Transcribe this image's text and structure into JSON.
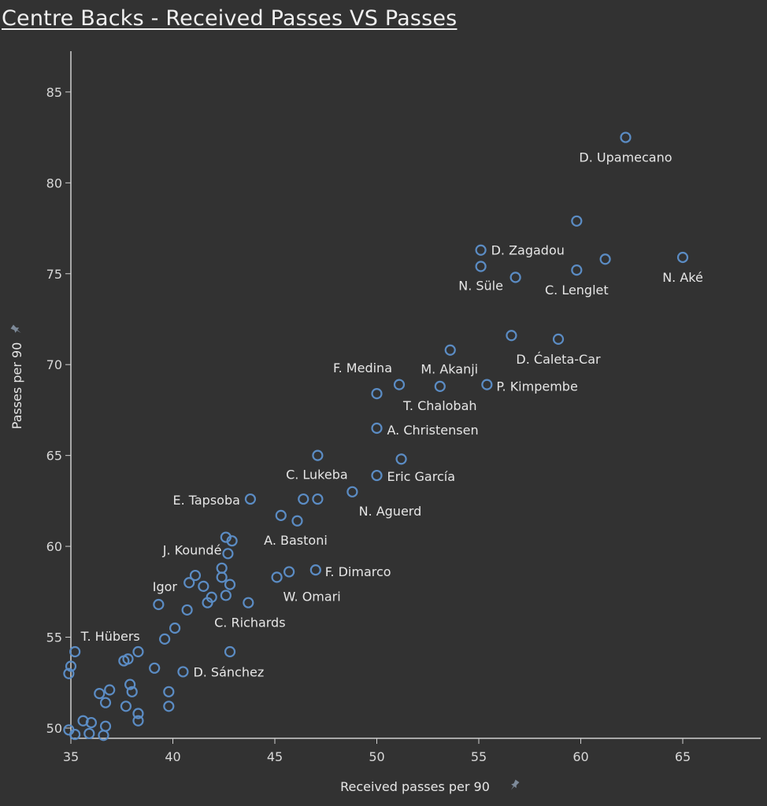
{
  "chart_data": {
    "type": "scatter",
    "title": "Centre Backs - Received Passes VS Passes",
    "xlabel": "Received passes per 90",
    "ylabel": "Passes per 90",
    "xlim": [
      34.7,
      69
    ],
    "ylim": [
      49.45,
      87.25
    ],
    "xticks": [
      35,
      40,
      45,
      50,
      55,
      60,
      65
    ],
    "yticks": [
      50,
      55,
      60,
      65,
      70,
      75,
      80,
      85
    ],
    "grid": false,
    "marker": "hollow-circle",
    "colors": {
      "background": "#323232",
      "point": "#5b8cc4",
      "text": "#e6e6e6",
      "axis": "#d0d0d0"
    },
    "axis_icon": "pin-icon",
    "points": [
      [
        62.2,
        82.5,
        "D. Upamecano"
      ],
      [
        59.8,
        77.9,
        ""
      ],
      [
        55.1,
        76.3,
        "D. Zagadou"
      ],
      [
        55.1,
        75.4,
        "N. Süle"
      ],
      [
        56.8,
        74.8,
        ""
      ],
      [
        61.2,
        75.8,
        ""
      ],
      [
        59.8,
        75.2,
        "C. Lenglet"
      ],
      [
        65.0,
        75.9,
        "N. Aké"
      ],
      [
        53.6,
        70.8,
        "M. Akanji"
      ],
      [
        56.6,
        71.6,
        ""
      ],
      [
        58.9,
        71.4,
        "D. Ćaleta-Car"
      ],
      [
        51.1,
        68.9,
        ""
      ],
      [
        53.1,
        68.8,
        "T. Chalobah"
      ],
      [
        55.4,
        68.9,
        "P. Kimpembe"
      ],
      [
        50.0,
        68.4,
        "F. Medina"
      ],
      [
        50.0,
        66.5,
        "A. Christensen"
      ],
      [
        47.1,
        65.0,
        "C. Lukeba"
      ],
      [
        51.2,
        64.8,
        ""
      ],
      [
        50.0,
        63.9,
        "Eric García"
      ],
      [
        48.8,
        63.0,
        "N. Aguerd"
      ],
      [
        43.8,
        62.6,
        "E. Tapsoba"
      ],
      [
        46.4,
        62.6,
        ""
      ],
      [
        47.1,
        62.6,
        ""
      ],
      [
        45.3,
        61.7,
        ""
      ],
      [
        46.1,
        61.4,
        "A. Bastoni"
      ],
      [
        47.0,
        58.7,
        "F. Dimarco"
      ],
      [
        45.7,
        58.6,
        "W. Omari"
      ],
      [
        45.1,
        58.3,
        ""
      ],
      [
        42.6,
        60.5,
        ""
      ],
      [
        42.9,
        60.3,
        ""
      ],
      [
        42.7,
        59.6,
        "J. Koundé"
      ],
      [
        42.4,
        58.8,
        ""
      ],
      [
        42.4,
        58.3,
        ""
      ],
      [
        42.8,
        57.9,
        ""
      ],
      [
        42.6,
        57.3,
        ""
      ],
      [
        41.1,
        58.4,
        ""
      ],
      [
        40.8,
        58.0,
        ""
      ],
      [
        41.5,
        57.8,
        ""
      ],
      [
        41.9,
        57.2,
        ""
      ],
      [
        41.7,
        56.9,
        ""
      ],
      [
        43.7,
        56.9,
        "C. Richards"
      ],
      [
        39.3,
        56.8,
        "Igor"
      ],
      [
        40.7,
        56.5,
        ""
      ],
      [
        40.1,
        55.5,
        ""
      ],
      [
        39.6,
        54.9,
        ""
      ],
      [
        35.2,
        54.2,
        "T. Hübers"
      ],
      [
        35.0,
        53.4,
        ""
      ],
      [
        34.9,
        53.0,
        ""
      ],
      [
        37.6,
        53.7,
        ""
      ],
      [
        37.8,
        53.8,
        ""
      ],
      [
        38.3,
        54.2,
        ""
      ],
      [
        39.1,
        53.3,
        ""
      ],
      [
        40.5,
        53.1,
        "D. Sánchez"
      ],
      [
        42.8,
        54.2,
        ""
      ],
      [
        36.4,
        51.9,
        ""
      ],
      [
        36.9,
        52.1,
        ""
      ],
      [
        36.7,
        51.4,
        ""
      ],
      [
        37.9,
        52.4,
        ""
      ],
      [
        38.0,
        52.0,
        ""
      ],
      [
        37.7,
        51.2,
        ""
      ],
      [
        38.3,
        50.8,
        ""
      ],
      [
        38.3,
        50.4,
        ""
      ],
      [
        39.8,
        52.0,
        ""
      ],
      [
        39.8,
        51.2,
        ""
      ],
      [
        35.6,
        50.4,
        ""
      ],
      [
        36.0,
        50.3,
        ""
      ],
      [
        36.7,
        50.1,
        ""
      ],
      [
        35.9,
        49.7,
        ""
      ],
      [
        36.6,
        49.6,
        ""
      ],
      [
        35.2,
        49.65,
        ""
      ],
      [
        34.9,
        49.9,
        ""
      ]
    ]
  }
}
